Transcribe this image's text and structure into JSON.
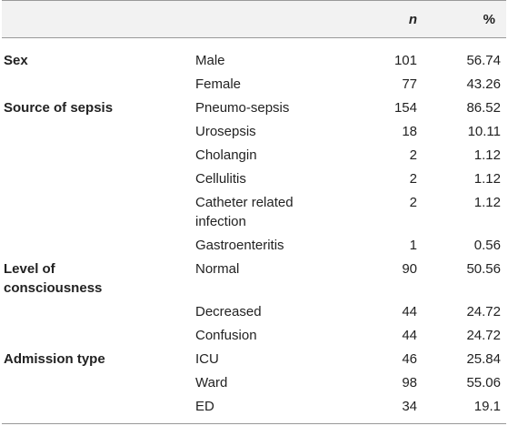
{
  "table": {
    "header": {
      "n": "n",
      "pct": "%"
    },
    "groups": [
      {
        "label": "Sex",
        "rows": [
          [
            "Male",
            101,
            56.74
          ],
          [
            "Female",
            77,
            43.26
          ]
        ]
      },
      {
        "label": "Source of sepsis",
        "rows": [
          [
            "Pneumo-sepsis",
            154,
            86.52
          ],
          [
            "Urosepsis",
            18,
            10.11
          ],
          [
            "Cholangin",
            2,
            1.12
          ],
          [
            "Cellulitis",
            2,
            1.12
          ],
          [
            "Catheter related infection",
            2,
            1.12
          ],
          [
            "Gastroenteritis",
            1,
            0.56
          ]
        ]
      },
      {
        "label": "Level of consciousness",
        "rows": [
          [
            "Normal",
            90,
            50.56
          ],
          [
            "Decreased",
            44,
            24.72
          ],
          [
            "Confusion",
            44,
            24.72
          ]
        ]
      },
      {
        "label": "Admission type",
        "rows": [
          [
            "ICU",
            46,
            25.84
          ],
          [
            "Ward",
            98,
            55.06
          ],
          [
            "ED",
            34,
            19.1
          ]
        ]
      }
    ]
  }
}
